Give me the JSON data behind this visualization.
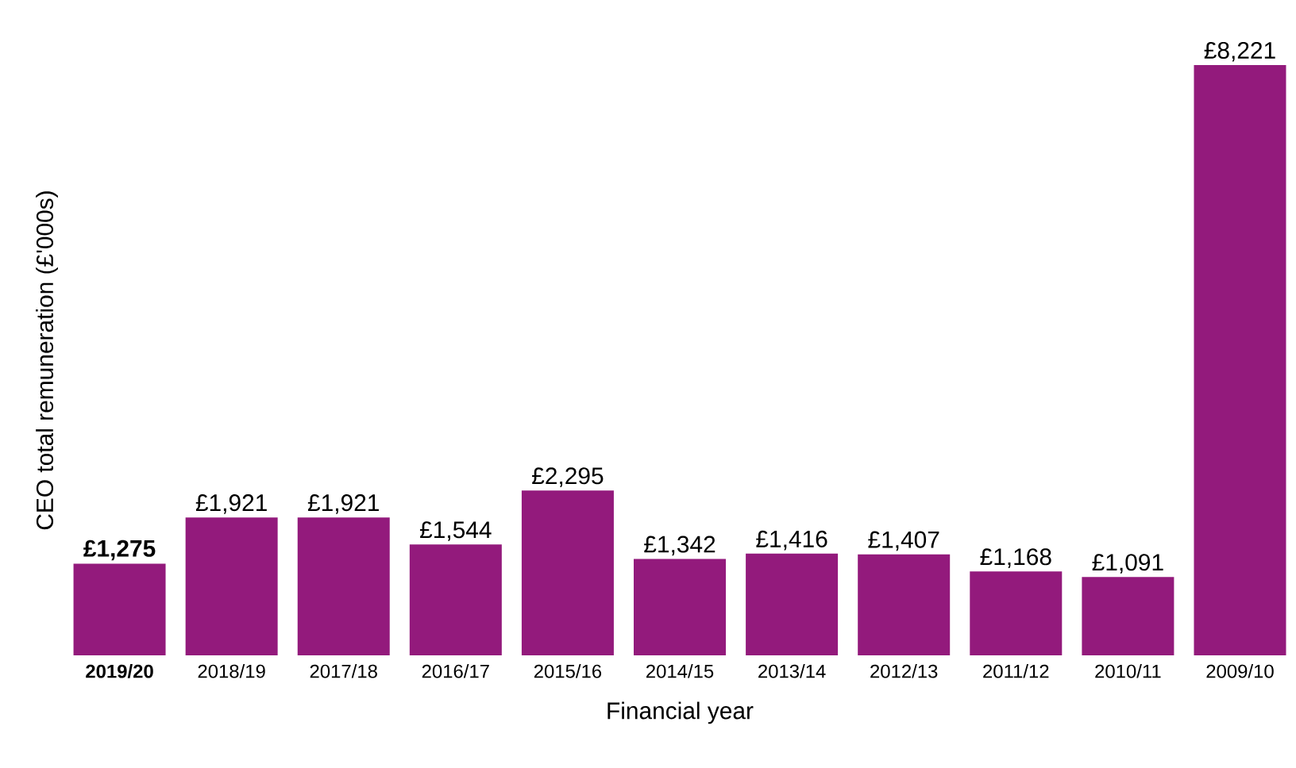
{
  "chart_data": {
    "type": "bar",
    "xlabel": "Financial year",
    "ylabel": "CEO total remuneration (£'000s)",
    "categories": [
      "**2019/20**",
      "2018/19",
      "2017/18",
      "2016/17",
      "2015/16",
      "2014/15",
      "2013/14",
      "2012/13",
      "2011/12",
      "2010/11",
      "2009/10"
    ],
    "values": [
      1275,
      1921,
      1921,
      1544,
      2295,
      1342,
      1416,
      1407,
      1168,
      1091,
      8221
    ],
    "value_labels": [
      "**£1,275**",
      "£1,921",
      "£1,921",
      "£1,544",
      "£2,295",
      "£1,342",
      "£1,416",
      "£1,407",
      "£1,168",
      "£1,091",
      "£8,221"
    ],
    "color": "#931a7c"
  }
}
